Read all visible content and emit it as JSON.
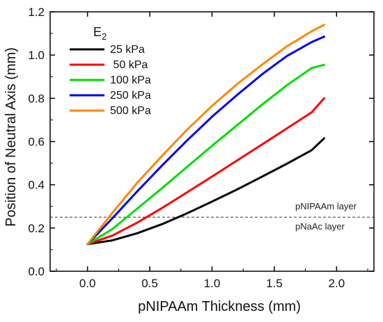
{
  "chart_data": {
    "type": "line",
    "xlabel": "pNIPAAm Thickness (mm)",
    "ylabel": "Position of Neutral Axis (mm)",
    "xlim": [
      -0.3,
      2.3
    ],
    "ylim": [
      0.0,
      1.2
    ],
    "xticks": [
      "0.0",
      "0.5",
      "1.0",
      "1.5",
      "2.0"
    ],
    "yticks": [
      "0.0",
      "0.2",
      "0.4",
      "0.6",
      "0.8",
      "1.0",
      "1.2"
    ],
    "grid": false,
    "legend": {
      "title_main": "E",
      "title_sub": "2",
      "placement": "top-left"
    },
    "series": [
      {
        "name": "25 kPa",
        "color": "#000000",
        "x": [
          0.0,
          0.2,
          0.4,
          0.6,
          0.8,
          1.0,
          1.2,
          1.4,
          1.6,
          1.8,
          1.9
        ],
        "y": [
          0.125,
          0.143,
          0.176,
          0.218,
          0.268,
          0.322,
          0.378,
          0.437,
          0.497,
          0.56,
          0.615
        ]
      },
      {
        "name": " 50 kPa",
        "color": "#ff0000",
        "x": [
          0.0,
          0.2,
          0.4,
          0.6,
          0.8,
          1.0,
          1.2,
          1.4,
          1.6,
          1.8,
          1.9
        ],
        "y": [
          0.125,
          0.165,
          0.225,
          0.293,
          0.365,
          0.438,
          0.512,
          0.586,
          0.66,
          0.735,
          0.8
        ]
      },
      {
        "name": "100 kPa",
        "color": "#00dd00",
        "x": [
          0.0,
          0.2,
          0.4,
          0.6,
          0.8,
          1.0,
          1.2,
          1.4,
          1.6,
          1.8,
          1.9
        ],
        "y": [
          0.125,
          0.195,
          0.29,
          0.385,
          0.483,
          0.58,
          0.675,
          0.77,
          0.86,
          0.94,
          0.955
        ]
      },
      {
        "name": "250 kPa",
        "color": "#0000ee",
        "x": [
          0.0,
          0.2,
          0.4,
          0.6,
          0.8,
          1.0,
          1.2,
          1.4,
          1.6,
          1.8,
          1.9
        ],
        "y": [
          0.125,
          0.245,
          0.37,
          0.49,
          0.605,
          0.715,
          0.815,
          0.91,
          0.995,
          1.06,
          1.085
        ]
      },
      {
        "name": "500 kPa",
        "color": "#ff8800",
        "x": [
          0.0,
          0.2,
          0.4,
          0.6,
          0.8,
          1.0,
          1.2,
          1.4,
          1.6,
          1.8,
          1.9
        ],
        "y": [
          0.125,
          0.27,
          0.41,
          0.535,
          0.655,
          0.765,
          0.865,
          0.955,
          1.04,
          1.11,
          1.14
        ]
      }
    ],
    "reference_line": {
      "y": 0.25,
      "style": "dashed",
      "label_above": "pNIPAAm layer",
      "label_below": "pNaAc layer"
    }
  }
}
